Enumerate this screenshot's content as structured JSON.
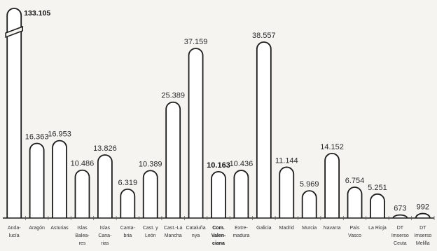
{
  "chart_data": {
    "type": "bar",
    "title": "",
    "xlabel": "",
    "ylabel": "",
    "axis_break_on_first_bar": true,
    "highlight_category": "Com. Valenciana",
    "colors": {
      "bar_fill": "#ffffff",
      "bar_stroke": "#1c1c1c",
      "background": "#f5f4f0"
    },
    "categories": [
      {
        "label": [
          "Anda-",
          "lucía"
        ],
        "value": 133105,
        "value_label": "133.105"
      },
      {
        "label": [
          "Aragón"
        ],
        "value": 16363,
        "value_label": "16.363"
      },
      {
        "label": [
          "Asturias"
        ],
        "value": 16953,
        "value_label": "16.953"
      },
      {
        "label": [
          "Islas",
          "Balea-",
          "res"
        ],
        "value": 10486,
        "value_label": "10.486"
      },
      {
        "label": [
          "Islas",
          "Cana-",
          "rias"
        ],
        "value": 13826,
        "value_label": "13.826"
      },
      {
        "label": [
          "Canta-",
          "bria"
        ],
        "value": 6319,
        "value_label": "6.319"
      },
      {
        "label": [
          "Cast. y",
          "León"
        ],
        "value": 10389,
        "value_label": "10.389"
      },
      {
        "label": [
          "Cast.-La",
          "Mancha"
        ],
        "value": 25389,
        "value_label": "25.389"
      },
      {
        "label": [
          "Cataluña",
          "nya"
        ],
        "value": 37159,
        "value_label": "37.159"
      },
      {
        "label": [
          "Com.",
          "Valen-",
          "ciana"
        ],
        "value": 10163,
        "value_label": "10.163"
      },
      {
        "label": [
          "Extre-",
          "madura"
        ],
        "value": 10436,
        "value_label": "10.436"
      },
      {
        "label": [
          "Galicia"
        ],
        "value": 38557,
        "value_label": "38.557"
      },
      {
        "label": [
          "Madrid"
        ],
        "value": 11144,
        "value_label": "11.144"
      },
      {
        "label": [
          "Murcia"
        ],
        "value": 5969,
        "value_label": "5.969"
      },
      {
        "label": [
          "Navarra"
        ],
        "value": 14152,
        "value_label": "14.152"
      },
      {
        "label": [
          "País",
          "Vasco"
        ],
        "value": 6754,
        "value_label": "6.754"
      },
      {
        "label": [
          "La Rioja"
        ],
        "value": 5251,
        "value_label": "5.251"
      },
      {
        "label": [
          "DT",
          "Imserso",
          "Ceuta"
        ],
        "value": 673,
        "value_label": "673"
      },
      {
        "label": [
          "DT",
          "Imserso",
          "Melilla"
        ],
        "value": 992,
        "value_label": "992"
      }
    ]
  }
}
